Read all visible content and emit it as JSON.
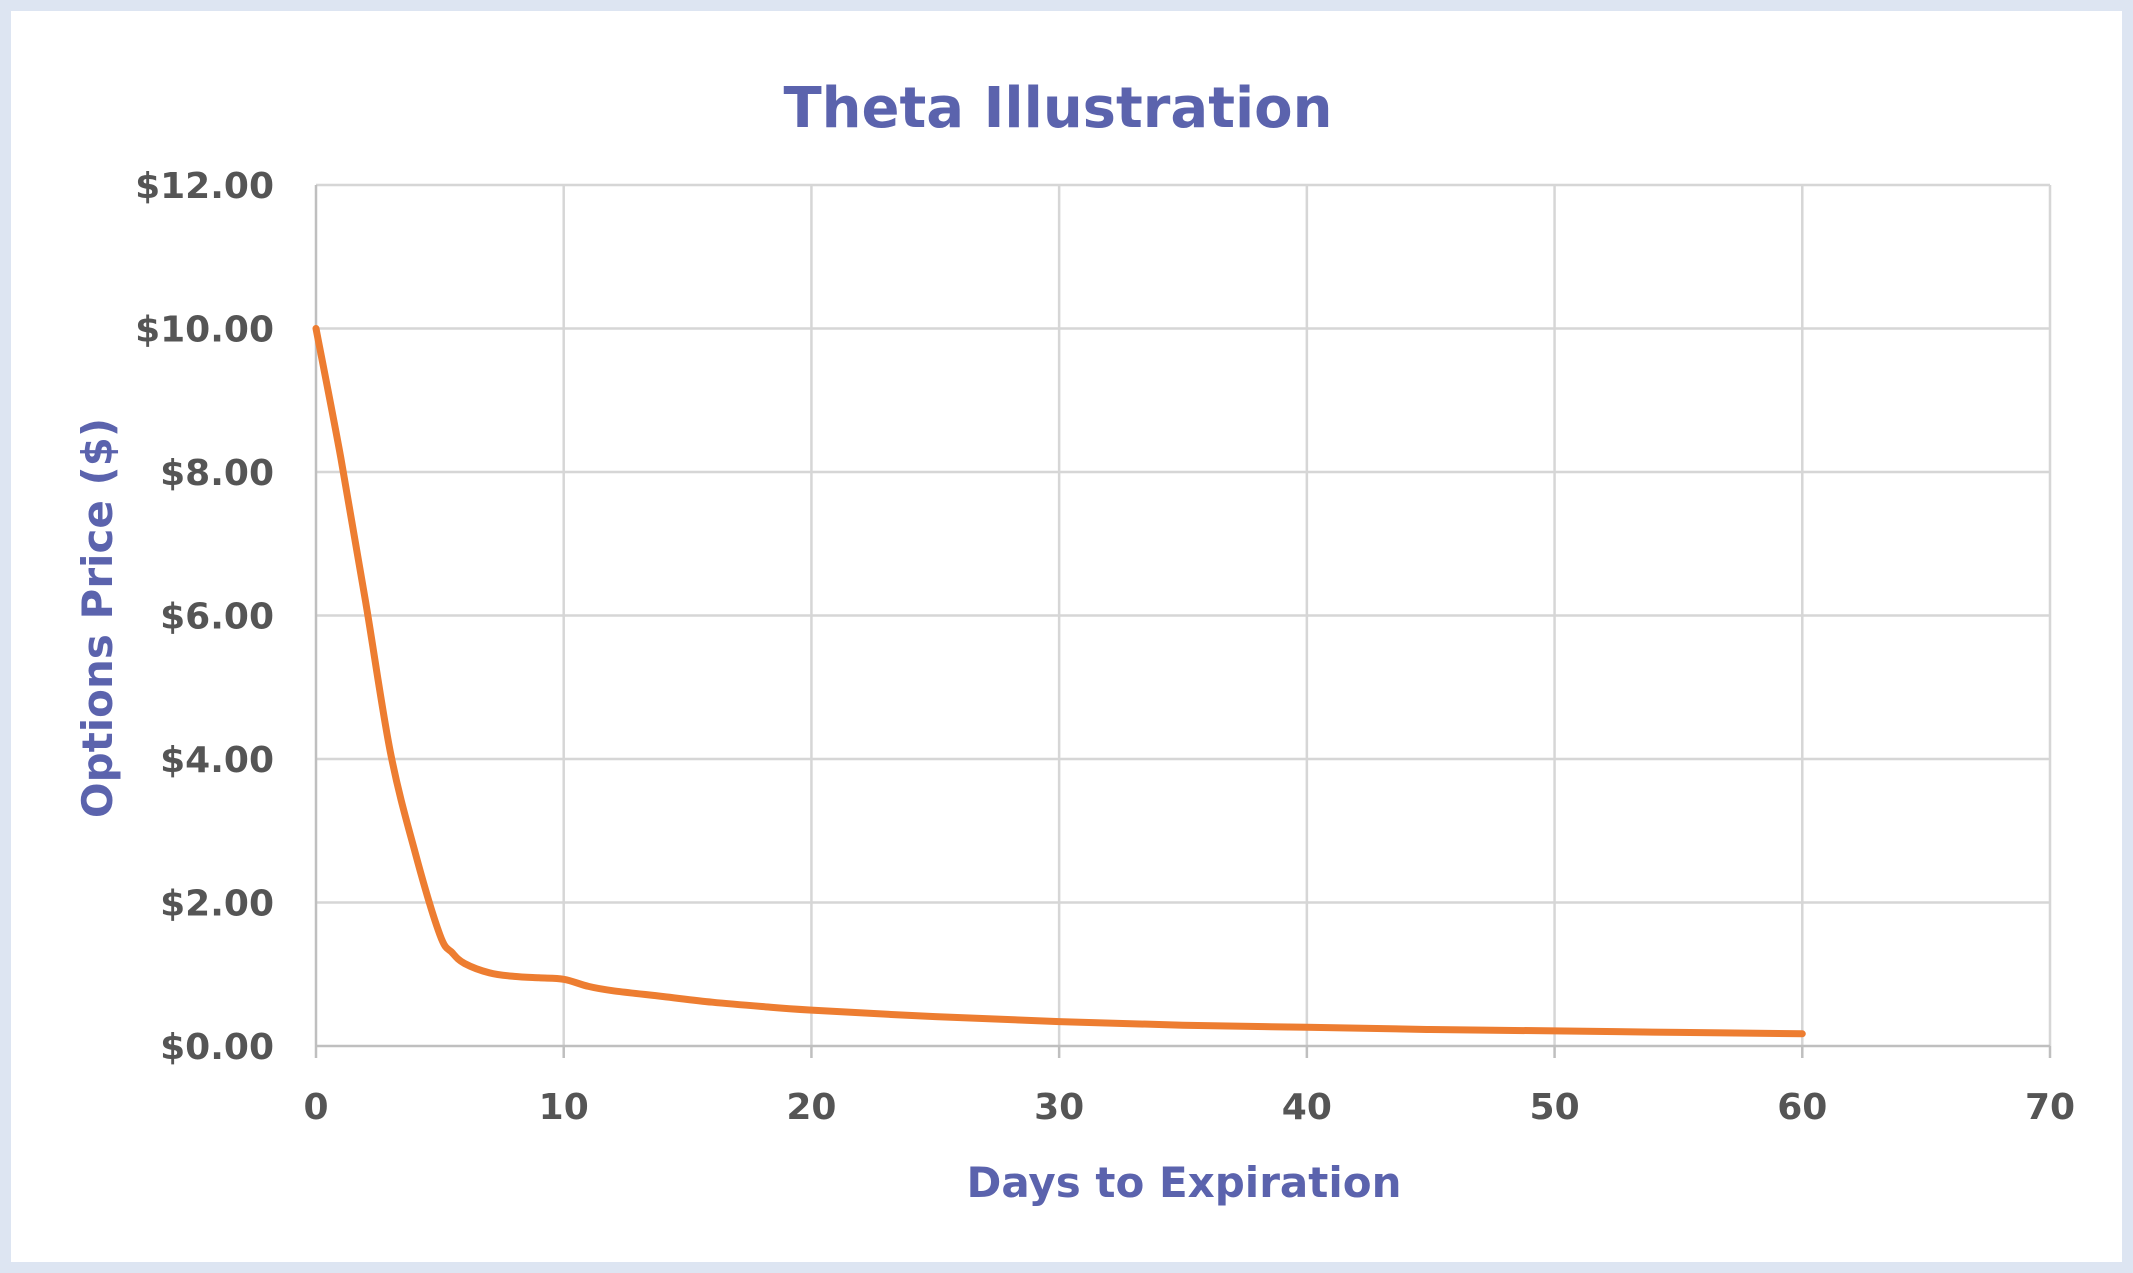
{
  "chart_data": {
    "type": "line",
    "title": "Theta Illustration",
    "xlabel": "Days to Expiration",
    "ylabel": "Options Price ($)",
    "xlim": [
      0,
      70
    ],
    "ylim": [
      0,
      12
    ],
    "x_ticks": [
      0,
      10,
      20,
      30,
      40,
      50,
      60,
      70
    ],
    "x_tick_labels": [
      "0",
      "10",
      "20",
      "30",
      "40",
      "50",
      "60",
      "70"
    ],
    "y_ticks": [
      0,
      2,
      4,
      6,
      8,
      10,
      12
    ],
    "y_tick_labels": [
      "$0.00",
      "$2.00",
      "$4.00",
      "$6.00",
      "$8.00",
      "$10.00",
      "$12.00"
    ],
    "grid": true,
    "legend": "none",
    "series": [
      {
        "color": "#ed7d31",
        "x": [
          0,
          1,
          2,
          3,
          4,
          5,
          5.5,
          6,
          7,
          8,
          9,
          10,
          11,
          12,
          14,
          16,
          18,
          20,
          25,
          30,
          35,
          40,
          45,
          50,
          55,
          60
        ],
        "y": [
          10,
          8.2,
          6.2,
          4.1,
          2.7,
          1.55,
          1.3,
          1.15,
          1.02,
          0.97,
          0.95,
          0.93,
          0.83,
          0.77,
          0.69,
          0.61,
          0.55,
          0.5,
          0.41,
          0.34,
          0.29,
          0.26,
          0.23,
          0.21,
          0.19,
          0.17
        ]
      }
    ]
  }
}
